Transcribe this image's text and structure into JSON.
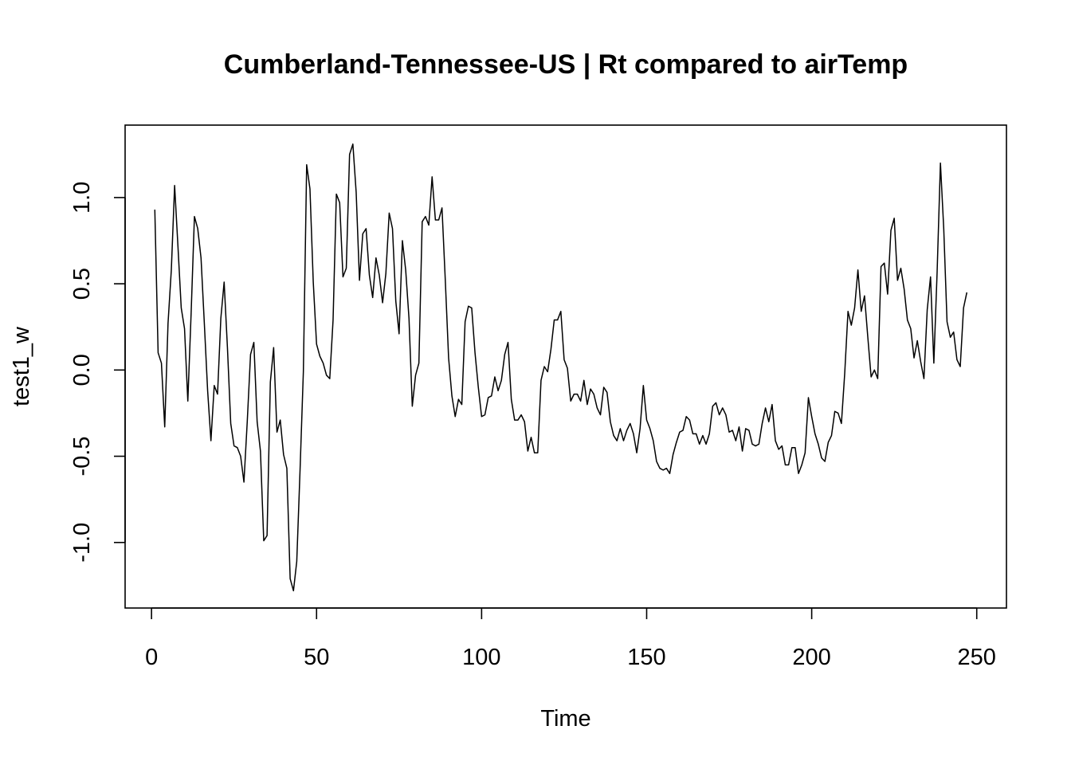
{
  "chart_data": {
    "type": "line",
    "title": "Cumberland-Tennessee-US | Rt compared to airTemp",
    "xlabel": "Time",
    "ylabel": "test1_w",
    "xlim": [
      -8,
      259
    ],
    "ylim": [
      -1.38,
      1.42
    ],
    "x_ticks": [
      0,
      50,
      100,
      150,
      200,
      250
    ],
    "y_ticks": [
      -1.0,
      -0.5,
      0.0,
      0.5,
      1.0
    ],
    "x_tick_labels": [
      "0",
      "50",
      "100",
      "150",
      "200",
      "250"
    ],
    "y_tick_labels": [
      "-1.0",
      "-0.5",
      "0.0",
      "0.5",
      "1.0"
    ],
    "grid": false,
    "legend": "none",
    "line_color": "#000000",
    "series": [
      {
        "x_start": 1,
        "values": [
          0.93,
          0.1,
          0.04,
          -0.33,
          0.27,
          0.58,
          1.07,
          0.72,
          0.36,
          0.24,
          -0.18,
          0.33,
          0.89,
          0.82,
          0.65,
          0.27,
          -0.12,
          -0.41,
          -0.09,
          -0.14,
          0.3,
          0.51,
          0.13,
          -0.31,
          -0.44,
          -0.45,
          -0.5,
          -0.65,
          -0.3,
          0.09,
          0.16,
          -0.3,
          -0.47,
          -0.99,
          -0.96,
          -0.07,
          0.13,
          -0.36,
          -0.29,
          -0.49,
          -0.57,
          -1.21,
          -1.28,
          -1.11,
          -0.58,
          -0.01,
          1.19,
          1.05,
          0.51,
          0.15,
          0.08,
          0.04,
          -0.03,
          -0.05,
          0.29,
          1.02,
          0.97,
          0.54,
          0.59,
          1.25,
          1.31,
          1.03,
          0.52,
          0.79,
          0.82,
          0.55,
          0.42,
          0.65,
          0.55,
          0.39,
          0.56,
          0.91,
          0.82,
          0.4,
          0.21,
          0.75,
          0.58,
          0.3,
          -0.21,
          -0.03,
          0.04,
          0.86,
          0.89,
          0.84,
          1.12,
          0.87,
          0.87,
          0.94,
          0.52,
          0.07,
          -0.15,
          -0.27,
          -0.17,
          -0.2,
          0.28,
          0.37,
          0.36,
          0.1,
          -0.1,
          -0.27,
          -0.26,
          -0.16,
          -0.15,
          -0.04,
          -0.12,
          -0.06,
          0.09,
          0.16,
          -0.17,
          -0.29,
          -0.29,
          -0.26,
          -0.3,
          -0.47,
          -0.39,
          -0.48,
          -0.48,
          -0.06,
          0.02,
          -0.01,
          0.12,
          0.29,
          0.29,
          0.34,
          0.06,
          0.01,
          -0.18,
          -0.14,
          -0.14,
          -0.18,
          -0.06,
          -0.2,
          -0.11,
          -0.14,
          -0.22,
          -0.26,
          -0.1,
          -0.13,
          -0.3,
          -0.38,
          -0.41,
          -0.34,
          -0.41,
          -0.35,
          -0.31,
          -0.37,
          -0.48,
          -0.34,
          -0.09,
          -0.29,
          -0.34,
          -0.41,
          -0.53,
          -0.57,
          -0.58,
          -0.57,
          -0.6,
          -0.49,
          -0.42,
          -0.36,
          -0.35,
          -0.27,
          -0.29,
          -0.37,
          -0.37,
          -0.43,
          -0.38,
          -0.43,
          -0.37,
          -0.21,
          -0.19,
          -0.26,
          -0.22,
          -0.26,
          -0.36,
          -0.35,
          -0.41,
          -0.33,
          -0.47,
          -0.34,
          -0.35,
          -0.43,
          -0.44,
          -0.43,
          -0.31,
          -0.22,
          -0.3,
          -0.2,
          -0.41,
          -0.46,
          -0.44,
          -0.55,
          -0.55,
          -0.45,
          -0.45,
          -0.6,
          -0.55,
          -0.48,
          -0.16,
          -0.27,
          -0.37,
          -0.43,
          -0.51,
          -0.53,
          -0.42,
          -0.38,
          -0.24,
          -0.25,
          -0.31,
          -0.02,
          0.34,
          0.26,
          0.36,
          0.58,
          0.34,
          0.43,
          0.19,
          -0.04,
          0.0,
          -0.05,
          0.6,
          0.62,
          0.44,
          0.81,
          0.88,
          0.52,
          0.59,
          0.47,
          0.29,
          0.24,
          0.07,
          0.17,
          0.05,
          -0.05,
          0.35,
          0.54,
          0.04,
          0.57,
          1.2,
          0.82,
          0.28,
          0.19,
          0.22,
          0.06,
          0.02,
          0.36,
          0.45
        ]
      }
    ]
  }
}
